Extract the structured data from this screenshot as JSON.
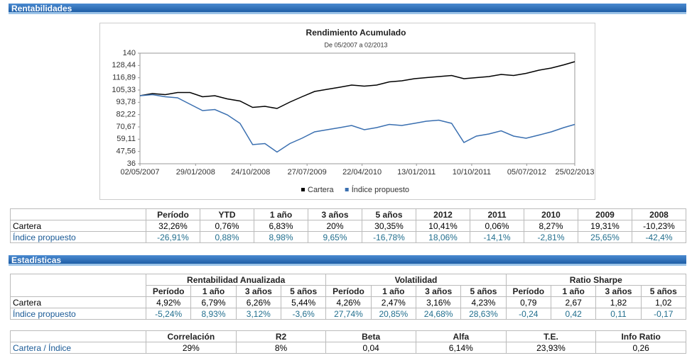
{
  "sections": [
    "Rentabilidades",
    "Estadísticas"
  ],
  "chart_data": {
    "type": "line",
    "title": "Rendimiento Acumulado",
    "subtitle": "De 05/2007 a 02/2013",
    "x": [
      "02/05/2007",
      "02/07/2007",
      "03/09/2007",
      "02/11/2007",
      "02/01/2008",
      "03/03/2008",
      "02/05/2008",
      "02/07/2008",
      "02/09/2008",
      "03/11/2008",
      "02/01/2009",
      "02/03/2009",
      "04/05/2009",
      "02/07/2009",
      "02/09/2009",
      "02/11/2009",
      "04/01/2010",
      "02/03/2010",
      "03/05/2010",
      "02/07/2010",
      "02/09/2010",
      "02/11/2010",
      "03/01/2011",
      "02/03/2011",
      "02/05/2011",
      "04/07/2011",
      "02/09/2011",
      "02/11/2011",
      "02/01/2012",
      "02/03/2012",
      "02/05/2012",
      "02/07/2012",
      "03/09/2012",
      "02/11/2012",
      "02/01/2013",
      "25/02/2013"
    ],
    "series": [
      {
        "name": "Cartera",
        "color": "#000000",
        "values": [
          100,
          102,
          101,
          103,
          103,
          99,
          100,
          97,
          95,
          89,
          90,
          88,
          94,
          99,
          104,
          106,
          108,
          110,
          109,
          110,
          113,
          114,
          116,
          117,
          118,
          119,
          116,
          117,
          118,
          120,
          119,
          121,
          124,
          126,
          129,
          132
        ]
      },
      {
        "name": "Índice propuesto",
        "color": "#3a6fb0",
        "values": [
          100,
          101,
          99,
          98,
          92,
          86,
          87,
          82,
          74,
          54,
          55,
          47,
          55,
          60,
          66,
          68,
          70,
          72,
          68,
          70,
          73,
          72,
          74,
          76,
          77,
          74,
          56,
          62,
          64,
          67,
          62,
          60,
          63,
          66,
          70,
          73
        ]
      }
    ],
    "xlim": [
      "02/05/2007",
      "25/02/2013"
    ],
    "xticks": [
      "02/05/2007",
      "29/01/2008",
      "24/10/2008",
      "27/07/2009",
      "22/04/2010",
      "13/01/2011",
      "10/10/2011",
      "05/07/2012",
      "25/02/2013"
    ],
    "ylim": [
      36,
      140
    ],
    "yticks": [
      36,
      {
        "value": 47.56,
        "label": "47,56"
      },
      {
        "value": 59.11,
        "label": "59,11"
      },
      {
        "value": 70.67,
        "label": "70,67"
      },
      {
        "value": 82.22,
        "label": "82,22"
      },
      {
        "value": 93.78,
        "label": "93,78"
      },
      {
        "value": 105.33,
        "label": "105,33"
      },
      {
        "value": 116.89,
        "label": "116,89"
      },
      {
        "value": 128.44,
        "label": "128,44"
      },
      140
    ],
    "grid": false,
    "legend": "bottom"
  },
  "returns_table": {
    "header": [
      "Período",
      "YTD",
      "1 año",
      "3 años",
      "5 años",
      "2012",
      "2011",
      "2010",
      "2009",
      "2008"
    ],
    "rows": [
      [
        "Cartera",
        "32,26%",
        "0,76%",
        "6,83%",
        "20%",
        "30,35%",
        "10,41%",
        "0,06%",
        "8,27%",
        "19,31%",
        "-10,23%"
      ],
      [
        "Índice propuesto",
        "-26,91%",
        "0,88%",
        "8,98%",
        "9,65%",
        "-16,78%",
        "18,06%",
        "-14,1%",
        "-2,81%",
        "25,65%",
        "-42,4%"
      ]
    ]
  },
  "stats_table": {
    "groups": [
      "Rentabilidad Anualizada",
      "Volatilidad",
      "Ratio Sharpe"
    ],
    "header": [
      "Período",
      "1 año",
      "3 años",
      "5 años",
      "Período",
      "1 año",
      "3 años",
      "5 años",
      "Período",
      "1 año",
      "3 años",
      "5 años"
    ],
    "rows": [
      [
        "Cartera",
        "4,92%",
        "6,79%",
        "6,26%",
        "5,44%",
        "4,26%",
        "2,47%",
        "3,16%",
        "4,23%",
        "0,79",
        "2,67",
        "1,82",
        "1,02"
      ],
      [
        "Índice propuesto",
        "-5,24%",
        "8,93%",
        "3,12%",
        "-3,6%",
        "27,74%",
        "20,85%",
        "24,68%",
        "28,63%",
        "-0,24",
        "0,42",
        "0,11",
        "-0,17"
      ]
    ]
  },
  "correlation_table": {
    "header": [
      "Correlación",
      "R2",
      "Beta",
      "Alfa",
      "T.E.",
      "Info Ratio"
    ],
    "rows": [
      [
        "Cartera / Índice",
        "29%",
        "8%",
        "0,04",
        "6,14%",
        "23,93%",
        "0,26"
      ]
    ]
  }
}
